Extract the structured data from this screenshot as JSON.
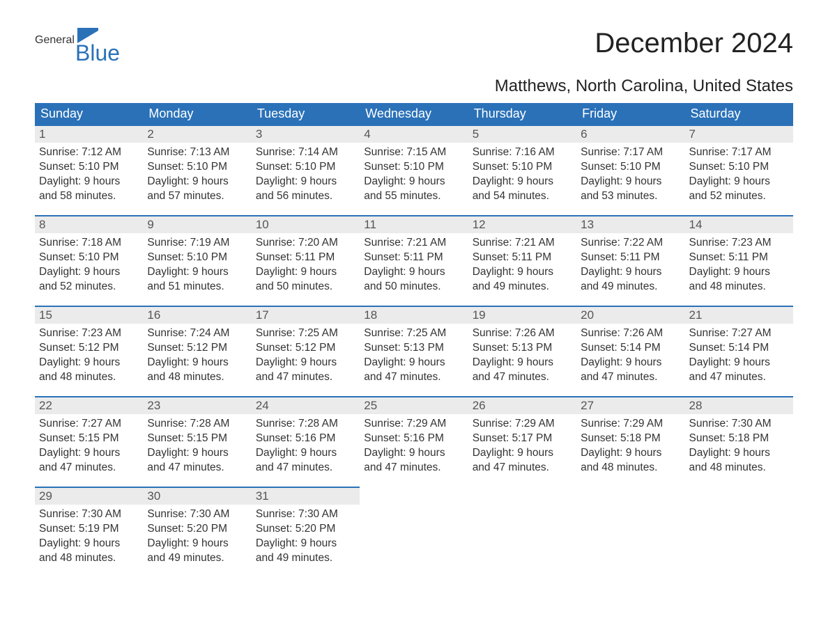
{
  "logo": {
    "word1": "General",
    "word2": "Blue"
  },
  "header": {
    "month_title": "December 2024",
    "location": "Matthews, North Carolina, United States"
  },
  "colors": {
    "header_bg": "#2a71b8",
    "header_text": "#ffffff",
    "daynum_bg": "#ebebeb",
    "daynum_border": "#2a71b8",
    "body_bg": "#ffffff",
    "text": "#333333",
    "logo_blue": "#2a71b8"
  },
  "weekdays": [
    "Sunday",
    "Monday",
    "Tuesday",
    "Wednesday",
    "Thursday",
    "Friday",
    "Saturday"
  ],
  "weeks": [
    [
      {
        "day": "1",
        "sunrise": "Sunrise: 7:12 AM",
        "sunset": "Sunset: 5:10 PM",
        "d1": "Daylight: 9 hours",
        "d2": "and 58 minutes."
      },
      {
        "day": "2",
        "sunrise": "Sunrise: 7:13 AM",
        "sunset": "Sunset: 5:10 PM",
        "d1": "Daylight: 9 hours",
        "d2": "and 57 minutes."
      },
      {
        "day": "3",
        "sunrise": "Sunrise: 7:14 AM",
        "sunset": "Sunset: 5:10 PM",
        "d1": "Daylight: 9 hours",
        "d2": "and 56 minutes."
      },
      {
        "day": "4",
        "sunrise": "Sunrise: 7:15 AM",
        "sunset": "Sunset: 5:10 PM",
        "d1": "Daylight: 9 hours",
        "d2": "and 55 minutes."
      },
      {
        "day": "5",
        "sunrise": "Sunrise: 7:16 AM",
        "sunset": "Sunset: 5:10 PM",
        "d1": "Daylight: 9 hours",
        "d2": "and 54 minutes."
      },
      {
        "day": "6",
        "sunrise": "Sunrise: 7:17 AM",
        "sunset": "Sunset: 5:10 PM",
        "d1": "Daylight: 9 hours",
        "d2": "and 53 minutes."
      },
      {
        "day": "7",
        "sunrise": "Sunrise: 7:17 AM",
        "sunset": "Sunset: 5:10 PM",
        "d1": "Daylight: 9 hours",
        "d2": "and 52 minutes."
      }
    ],
    [
      {
        "day": "8",
        "sunrise": "Sunrise: 7:18 AM",
        "sunset": "Sunset: 5:10 PM",
        "d1": "Daylight: 9 hours",
        "d2": "and 52 minutes."
      },
      {
        "day": "9",
        "sunrise": "Sunrise: 7:19 AM",
        "sunset": "Sunset: 5:10 PM",
        "d1": "Daylight: 9 hours",
        "d2": "and 51 minutes."
      },
      {
        "day": "10",
        "sunrise": "Sunrise: 7:20 AM",
        "sunset": "Sunset: 5:11 PM",
        "d1": "Daylight: 9 hours",
        "d2": "and 50 minutes."
      },
      {
        "day": "11",
        "sunrise": "Sunrise: 7:21 AM",
        "sunset": "Sunset: 5:11 PM",
        "d1": "Daylight: 9 hours",
        "d2": "and 50 minutes."
      },
      {
        "day": "12",
        "sunrise": "Sunrise: 7:21 AM",
        "sunset": "Sunset: 5:11 PM",
        "d1": "Daylight: 9 hours",
        "d2": "and 49 minutes."
      },
      {
        "day": "13",
        "sunrise": "Sunrise: 7:22 AM",
        "sunset": "Sunset: 5:11 PM",
        "d1": "Daylight: 9 hours",
        "d2": "and 49 minutes."
      },
      {
        "day": "14",
        "sunrise": "Sunrise: 7:23 AM",
        "sunset": "Sunset: 5:11 PM",
        "d1": "Daylight: 9 hours",
        "d2": "and 48 minutes."
      }
    ],
    [
      {
        "day": "15",
        "sunrise": "Sunrise: 7:23 AM",
        "sunset": "Sunset: 5:12 PM",
        "d1": "Daylight: 9 hours",
        "d2": "and 48 minutes."
      },
      {
        "day": "16",
        "sunrise": "Sunrise: 7:24 AM",
        "sunset": "Sunset: 5:12 PM",
        "d1": "Daylight: 9 hours",
        "d2": "and 48 minutes."
      },
      {
        "day": "17",
        "sunrise": "Sunrise: 7:25 AM",
        "sunset": "Sunset: 5:12 PM",
        "d1": "Daylight: 9 hours",
        "d2": "and 47 minutes."
      },
      {
        "day": "18",
        "sunrise": "Sunrise: 7:25 AM",
        "sunset": "Sunset: 5:13 PM",
        "d1": "Daylight: 9 hours",
        "d2": "and 47 minutes."
      },
      {
        "day": "19",
        "sunrise": "Sunrise: 7:26 AM",
        "sunset": "Sunset: 5:13 PM",
        "d1": "Daylight: 9 hours",
        "d2": "and 47 minutes."
      },
      {
        "day": "20",
        "sunrise": "Sunrise: 7:26 AM",
        "sunset": "Sunset: 5:14 PM",
        "d1": "Daylight: 9 hours",
        "d2": "and 47 minutes."
      },
      {
        "day": "21",
        "sunrise": "Sunrise: 7:27 AM",
        "sunset": "Sunset: 5:14 PM",
        "d1": "Daylight: 9 hours",
        "d2": "and 47 minutes."
      }
    ],
    [
      {
        "day": "22",
        "sunrise": "Sunrise: 7:27 AM",
        "sunset": "Sunset: 5:15 PM",
        "d1": "Daylight: 9 hours",
        "d2": "and 47 minutes."
      },
      {
        "day": "23",
        "sunrise": "Sunrise: 7:28 AM",
        "sunset": "Sunset: 5:15 PM",
        "d1": "Daylight: 9 hours",
        "d2": "and 47 minutes."
      },
      {
        "day": "24",
        "sunrise": "Sunrise: 7:28 AM",
        "sunset": "Sunset: 5:16 PM",
        "d1": "Daylight: 9 hours",
        "d2": "and 47 minutes."
      },
      {
        "day": "25",
        "sunrise": "Sunrise: 7:29 AM",
        "sunset": "Sunset: 5:16 PM",
        "d1": "Daylight: 9 hours",
        "d2": "and 47 minutes."
      },
      {
        "day": "26",
        "sunrise": "Sunrise: 7:29 AM",
        "sunset": "Sunset: 5:17 PM",
        "d1": "Daylight: 9 hours",
        "d2": "and 47 minutes."
      },
      {
        "day": "27",
        "sunrise": "Sunrise: 7:29 AM",
        "sunset": "Sunset: 5:18 PM",
        "d1": "Daylight: 9 hours",
        "d2": "and 48 minutes."
      },
      {
        "day": "28",
        "sunrise": "Sunrise: 7:30 AM",
        "sunset": "Sunset: 5:18 PM",
        "d1": "Daylight: 9 hours",
        "d2": "and 48 minutes."
      }
    ],
    [
      {
        "day": "29",
        "sunrise": "Sunrise: 7:30 AM",
        "sunset": "Sunset: 5:19 PM",
        "d1": "Daylight: 9 hours",
        "d2": "and 48 minutes."
      },
      {
        "day": "30",
        "sunrise": "Sunrise: 7:30 AM",
        "sunset": "Sunset: 5:20 PM",
        "d1": "Daylight: 9 hours",
        "d2": "and 49 minutes."
      },
      {
        "day": "31",
        "sunrise": "Sunrise: 7:30 AM",
        "sunset": "Sunset: 5:20 PM",
        "d1": "Daylight: 9 hours",
        "d2": "and 49 minutes."
      },
      null,
      null,
      null,
      null
    ]
  ]
}
